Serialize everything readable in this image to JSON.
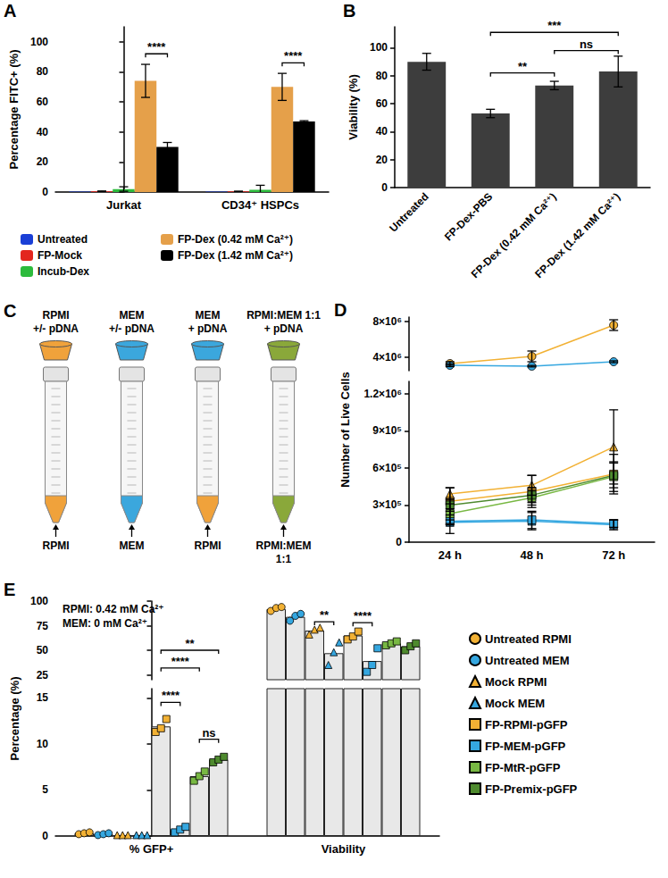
{
  "chart_data": [
    {
      "panel": "A",
      "type": "bar",
      "categories": [
        "Jurkat",
        "CD34⁺ HSPCs"
      ],
      "y_label": "Percentage FITC+ (%)",
      "ylim": [
        0,
        110
      ],
      "yticks": [
        0,
        20,
        40,
        60,
        80,
        100
      ],
      "legend": "bottom",
      "series": [
        {
          "name": "Untreated",
          "color": "#1a3fd6",
          "values": [
            0.3,
            0.3
          ],
          "errors": [
            0,
            0
          ]
        },
        {
          "name": "FP-Mock",
          "color": "#e3261e",
          "values": [
            0.5,
            0.4
          ],
          "errors": [
            0.2,
            0.2
          ]
        },
        {
          "name": "Incub-Dex",
          "color": "#2dbb3c",
          "values": [
            2,
            1.5
          ],
          "errors": [
            1.5,
            3
          ]
        },
        {
          "name": "FP-Dex (0.42 mM Ca²⁺)",
          "color": "#e5a04a",
          "values": [
            74,
            70
          ],
          "errors": [
            11,
            9
          ]
        },
        {
          "name": "FP-Dex (1.42 mM Ca²⁺)",
          "color": "#000000",
          "values": [
            30,
            47
          ],
          "errors": [
            3,
            0.5
          ]
        }
      ],
      "annotations": [
        {
          "text": "****",
          "category": "Jurkat",
          "from": "FP-Dex (0.42 mM Ca²⁺)",
          "to": "FP-Dex (1.42 mM Ca²⁺)",
          "y": 92
        },
        {
          "text": "****",
          "category": "CD34⁺ HSPCs",
          "from": "FP-Dex (0.42 mM Ca²⁺)",
          "to": "FP-Dex (1.42 mM Ca²⁺)",
          "y": 86
        }
      ]
    },
    {
      "panel": "B",
      "type": "bar",
      "categories": [
        "Untreated",
        "FP-Dex-PBS",
        "FP-Dex (0.42 mM Ca²⁺)",
        "FP-Dex (1.42 mM Ca²⁺)"
      ],
      "values": [
        90,
        53,
        73,
        83
      ],
      "errors": [
        6,
        3,
        3,
        11
      ],
      "color": "#3d3d3d",
      "y_label": "Viability (%)",
      "ylim": [
        0,
        115
      ],
      "yticks": [
        0,
        20,
        40,
        60,
        80,
        100
      ],
      "annotations": [
        {
          "text": "**",
          "from": "FP-Dex-PBS",
          "to": "FP-Dex (0.42 mM Ca²⁺)",
          "y": 82
        },
        {
          "text": "ns",
          "from": "FP-Dex (0.42 mM Ca²⁺)",
          "to": "FP-Dex (1.42 mM Ca²⁺)",
          "y": 98
        },
        {
          "text": "***",
          "from": "FP-Dex-PBS",
          "to": "FP-Dex (1.42 mM Ca²⁺)",
          "y": 111
        }
      ]
    },
    {
      "panel": "D",
      "type": "line",
      "categories": [
        "24 h",
        "48 h",
        "72 h"
      ],
      "y_label": "Number of Live Cells",
      "ylim": [
        0,
        8500000
      ],
      "axis_break": [
        1300000,
        2500000
      ],
      "yticks": [
        0,
        {
          "value": 300000,
          "label": "3×10⁵"
        },
        {
          "value": 600000,
          "label": "6×10⁵"
        },
        {
          "value": 900000,
          "label": "9×10⁵"
        },
        {
          "value": 1200000,
          "label": "1.2×10⁶"
        },
        {
          "value": 4000000,
          "label": "4×10⁶"
        },
        {
          "value": 8000000,
          "label": "8×10⁶"
        }
      ],
      "series": [
        {
          "color": "#f2b134",
          "marker": "circle",
          "values": [
            3300000,
            4100000,
            7600000
          ],
          "errors": [
            200000,
            600000,
            600000
          ]
        },
        {
          "color": "#35a7e0",
          "marker": "circle",
          "values": [
            3100000,
            3000000,
            3500000
          ],
          "errors": [
            150000,
            80000,
            100000
          ]
        },
        {
          "color": "#f2b134",
          "marker": "triangle",
          "values": [
            390000,
            460000,
            770000
          ],
          "errors": [
            50000,
            80000,
            300000
          ]
        },
        {
          "color": "#35a7e0",
          "marker": "triangle",
          "values": [
            160000,
            170000,
            140000
          ],
          "errors": [
            20000,
            70000,
            40000
          ]
        },
        {
          "color": "#f2b134",
          "marker": "square",
          "values": [
            330000,
            410000,
            550000
          ],
          "errors": [
            110000,
            130000,
            160000
          ]
        },
        {
          "color": "#35a7e0",
          "marker": "square",
          "values": [
            170000,
            180000,
            150000
          ],
          "errors": [
            100000,
            70000,
            30000
          ]
        },
        {
          "color": "#78b843",
          "marker": "square",
          "values": [
            230000,
            360000,
            530000
          ],
          "errors": [
            80000,
            60000,
            120000
          ]
        },
        {
          "color": "#4e8a2e",
          "marker": "square",
          "values": [
            300000,
            380000,
            540000
          ],
          "errors": [
            50000,
            60000,
            100000
          ]
        }
      ]
    },
    {
      "panel": "E",
      "type": "bar",
      "categories": [
        "% GFP+",
        "Viability"
      ],
      "y_label": "Percentage (%)",
      "ylim": [
        0,
        100
      ],
      "axis_break": [
        16,
        20
      ],
      "yticks": [
        0,
        5,
        10,
        15,
        25,
        50,
        75,
        100
      ],
      "legend": "right",
      "notes": [
        "RPMI: 0.42 mM Ca²⁺",
        "MEM: 0 mM Ca²⁺"
      ],
      "series": [
        {
          "name": "Untreated RPMI",
          "color": "#f2b134",
          "marker": "circle",
          "values": [
            0.3,
            92
          ],
          "points": [
            [
              0.2,
              0.3,
              0.4
            ],
            [
              90,
              93,
              94
            ]
          ]
        },
        {
          "name": "Untreated MEM",
          "color": "#35a7e0",
          "marker": "circle",
          "values": [
            0.2,
            84
          ],
          "points": [
            [
              0.1,
              0.2,
              0.3
            ],
            [
              80,
              85,
              87
            ]
          ]
        },
        {
          "name": "Mock RPMI",
          "color": "#f2b134",
          "marker": "triangle",
          "values": [
            0.1,
            70
          ],
          "points": [
            [
              0.1,
              0.1,
              0.1
            ],
            [
              66,
              71,
              73
            ]
          ]
        },
        {
          "name": "Mock MEM",
          "color": "#35a7e0",
          "marker": "triangle",
          "values": [
            0.1,
            47
          ],
          "points": [
            [
              0.1,
              0.1,
              0.1
            ],
            [
              35,
              48,
              58
            ]
          ]
        },
        {
          "name": "FP-RPMI-pGFP",
          "color": "#f2b134",
          "marker": "square",
          "values": [
            11.9,
            65
          ],
          "points": [
            [
              11.3,
              11.7,
              12.7
            ],
            [
              61,
              64,
              69
            ]
          ]
        },
        {
          "name": "FP-MEM-pGFP",
          "color": "#35a7e0",
          "marker": "square",
          "values": [
            0.7,
            39
          ],
          "points": [
            [
              0.4,
              0.7,
              1.0
            ],
            [
              28,
              35,
              52
            ]
          ]
        },
        {
          "name": "FP-MtR-pGFP",
          "color": "#78b843",
          "marker": "square",
          "values": [
            6.5,
            57
          ],
          "points": [
            [
              6.0,
              6.5,
              7.0
            ],
            [
              55,
              57,
              59
            ]
          ]
        },
        {
          "name": "FP-Premix-pGFP",
          "color": "#4e8a2e",
          "marker": "square",
          "values": [
            8.3,
            54
          ],
          "points": [
            [
              8.0,
              8.3,
              8.6
            ],
            [
              50,
              54,
              57
            ]
          ]
        }
      ],
      "annotations": [
        {
          "text": "****",
          "category": "% GFP+",
          "from": "FP-RPMI-pGFP",
          "to": "FP-MEM-pGFP",
          "y": 14.5
        },
        {
          "text": "ns",
          "category": "% GFP+",
          "from": "FP-MtR-pGFP",
          "to": "FP-Premix-pGFP",
          "y": 10.5
        },
        {
          "text": "****",
          "category": "% GFP+",
          "from": "FP-RPMI-pGFP",
          "to": "FP-MtR-pGFP",
          "y": 32
        },
        {
          "text": "**",
          "category": "% GFP+",
          "from": "FP-RPMI-pGFP",
          "to": "FP-Premix-pGFP",
          "y": 50
        },
        {
          "text": "**",
          "category": "Viability",
          "from": "Mock RPMI",
          "to": "Mock MEM",
          "y": 79
        },
        {
          "text": "****",
          "category": "Viability",
          "from": "FP-RPMI-pGFP",
          "to": "FP-MEM-pGFP",
          "y": 78
        }
      ]
    }
  ],
  "diagram": {
    "panel": "C",
    "columns": [
      {
        "cup_label": [
          "RPMI",
          "+/- pDNA"
        ],
        "cup_color": "#f0a23b",
        "tube_label": [
          "RPMI"
        ],
        "tube_color": "#f0a23b"
      },
      {
        "cup_label": [
          "MEM",
          "+/- pDNA"
        ],
        "cup_color": "#3ba7dd",
        "tube_label": [
          "MEM"
        ],
        "tube_color": "#3ba7dd"
      },
      {
        "cup_label": [
          "MEM",
          "+ pDNA"
        ],
        "cup_color": "#3ba7dd",
        "tube_label": [
          "RPMI"
        ],
        "tube_color": "#f0a23b"
      },
      {
        "cup_label": [
          "RPMI:MEM 1:1",
          "+ pDNA"
        ],
        "cup_color": "#8aa83a",
        "tube_label": [
          "RPMI:MEM",
          "1:1"
        ],
        "tube_color": "#8aa83a"
      }
    ]
  }
}
